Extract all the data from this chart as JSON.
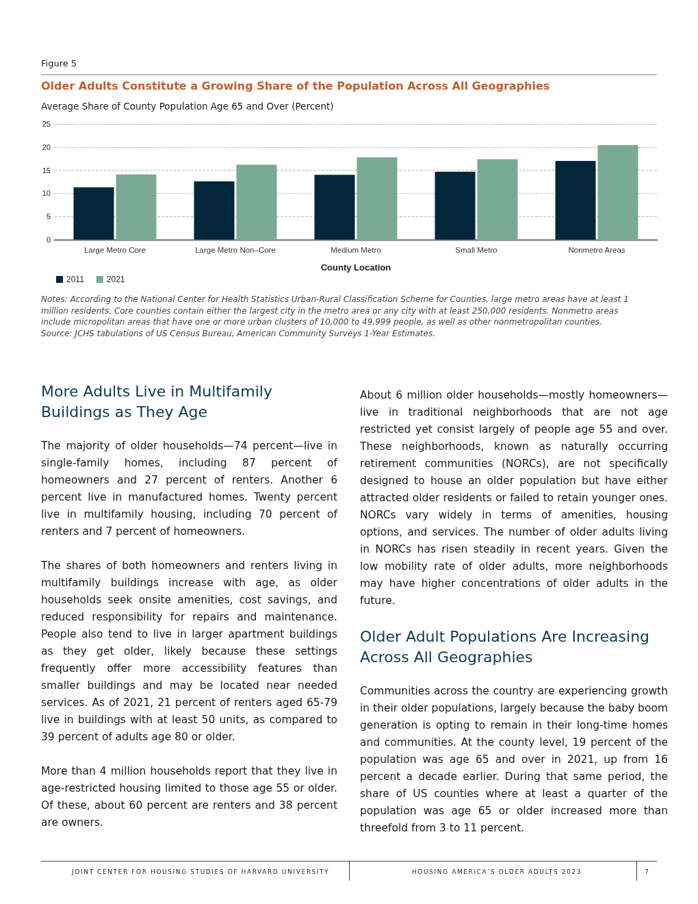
{
  "chart_data": {
    "type": "bar",
    "title": "Older Adults Constitute a Growing Share of the Population Across All Geographies",
    "ylabel": "Average Share of County Population Age 65 and Over (Percent)",
    "xlabel": "County Location",
    "categories": [
      "Large Metro Core",
      "Large Metro Non–Core",
      "Medium Metro",
      "Small Metro",
      "Nonmetro Areas"
    ],
    "series": [
      {
        "name": "2011",
        "color": "#04263a",
        "values": [
          11.3,
          12.6,
          14.0,
          14.7,
          17.0
        ]
      },
      {
        "name": "2021",
        "color": "#7aa995",
        "values": [
          14.1,
          16.2,
          17.8,
          17.4,
          20.4
        ]
      }
    ],
    "ylim": [
      0,
      25
    ],
    "yticks": [
      0,
      5,
      10,
      15,
      20,
      25
    ],
    "grid": "y",
    "legend": "bottom left",
    "annotations": [
      "Figure 5",
      "Notes: According to the National Center for Health Statistics Urban-Rural Classification Scheme for Counties, large metro areas have at least 1 million residents. Core counties contain either the largest city in the metro area or any city with at least 250,000 residents. Nonmetro areas include micropolitan areas that have one or more urban clusters of 10,000 to 49,999 people, as well as other nonmetropolitan counties.",
      "Source: JCHS tabulations of US Census Bureau, American Community Surveys 1-Year Estimates.",
      "More Adults Live in Multifamily Buildings as They Age",
      "The majority of older households—74 percent—live in single-family homes, including 87 percent of homeowners and 27 percent of renters. Another 6 percent live in manufactured homes. Twenty percent live in multifamily housing, including 70 percent of renters and 7 percent of homeowners.",
      "The shares of both homeowners and renters living in multifamily buildings increase with age, as older households seek onsite amenities, cost savings, and reduced responsibility for repairs and maintenance. People also tend to live in larger apartment buildings as they get older, likely because these settings frequently offer more accessibility features than smaller buildings and may be located near needed services. As of 2021, 21 percent of renters aged 65-79 live in buildings with at least 50 units, as compared to 39 percent of adults age 80 or older.",
      "More than 4 million households report that they live in age-restricted housing limited to those age 55 or older. Of these, about 60 percent are renters and 38 percent are owners.",
      "About 6 million older households—mostly homeowners—live in traditional neighborhoods that are not age restricted yet consist largely of people age 55 and over. These neighborhoods, known as naturally occurring retirement communities (NORCs), are not specifically designed to house an older population but have either attracted older residents or failed to retain younger ones. NORCs vary widely in terms of amenities, housing options, and services. The number of older adults living in NORCs has risen steadily in recent years. Given the low mobility rate of older adults, more neighborhoods may have higher concentrations of older adults in the future.",
      "Older Adult Populations Are Increasing Across All Geographies",
      "Communities across the country are experiencing growth in their older populations, largely because the baby boom generation is opting to remain in their long-time homes and communities. At the county level, 19 percent of the population was age 65 and over in 2021, up from 16 percent a decade earlier. During that same period, the share of US counties where at least a quarter of the population was age 65 or older increased more than threefold from 3 to 11 percent.",
      "JOINT CENTER FOR HOUSING STUDIES OF HARVARD UNIVERSITY",
      "HOUSING AMERICA’S OLDER ADULTS 2023",
      "7"
    ]
  }
}
